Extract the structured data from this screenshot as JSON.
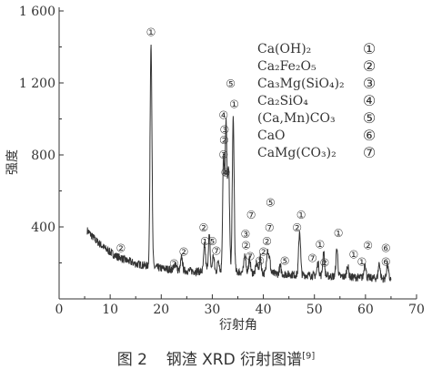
{
  "chart_data": {
    "type": "line",
    "xlabel": "衍射角",
    "ylabel": "强度",
    "xlim": [
      0,
      70
    ],
    "ylim": [
      0,
      1600
    ],
    "xticks": [
      "0",
      "10",
      "20",
      "30",
      "40",
      "50",
      "60",
      "70"
    ],
    "yticks": [
      "400",
      "800",
      "1 200",
      "1 600"
    ],
    "ytick_values": [
      400,
      800,
      1200,
      1600
    ],
    "legend": {
      "position": "top-right",
      "entries": [
        {
          "formula": "Ca(OH)₂",
          "marker": "①"
        },
        {
          "formula": "Ca₂Fe₂O₅",
          "marker": "②"
        },
        {
          "formula": "Ca₃Mg(SiO₄)₂",
          "marker": "③"
        },
        {
          "formula": "Ca₂SiO₄",
          "marker": "④"
        },
        {
          "formula": "(Ca,Mn)CO₃",
          "marker": "⑤"
        },
        {
          "formula": "CaO",
          "marker": "⑥"
        },
        {
          "formula": "CaMg(CO₃)₂",
          "marker": "⑦"
        }
      ]
    },
    "baseline": [
      [
        5.5,
        380
      ],
      [
        7,
        330
      ],
      [
        9,
        280
      ],
      [
        11,
        240
      ],
      [
        13,
        215
      ],
      [
        15,
        195
      ],
      [
        17,
        185
      ],
      [
        20,
        170
      ],
      [
        23,
        160
      ],
      [
        26,
        155
      ],
      [
        29,
        150
      ],
      [
        32,
        150
      ],
      [
        35,
        150
      ],
      [
        38,
        145
      ],
      [
        42,
        140
      ],
      [
        46,
        135
      ],
      [
        50,
        130
      ],
      [
        54,
        125
      ],
      [
        58,
        120
      ],
      [
        62,
        115
      ],
      [
        65,
        110
      ]
    ],
    "peaks": [
      {
        "x": 12.1,
        "y": 230
      },
      {
        "x": 18.0,
        "y": 1435
      },
      {
        "x": 22.8,
        "y": 200
      },
      {
        "x": 24.0,
        "y": 230
      },
      {
        "x": 28.5,
        "y": 300
      },
      {
        "x": 29.4,
        "y": 350
      },
      {
        "x": 30.2,
        "y": 240
      },
      {
        "x": 31.2,
        "y": 220
      },
      {
        "x": 32.2,
        "y": 780
      },
      {
        "x": 32.7,
        "y": 960
      },
      {
        "x": 33.2,
        "y": 720
      },
      {
        "x": 34.1,
        "y": 1000
      },
      {
        "x": 36.4,
        "y": 250
      },
      {
        "x": 37.3,
        "y": 220
      },
      {
        "x": 38.7,
        "y": 200
      },
      {
        "x": 39.4,
        "y": 230
      },
      {
        "x": 40.8,
        "y": 270
      },
      {
        "x": 41.2,
        "y": 220
      },
      {
        "x": 43.3,
        "y": 180
      },
      {
        "x": 47.1,
        "y": 380
      },
      {
        "x": 50.7,
        "y": 200
      },
      {
        "x": 51.8,
        "y": 260
      },
      {
        "x": 54.4,
        "y": 280
      },
      {
        "x": 56.5,
        "y": 190
      },
      {
        "x": 59.9,
        "y": 200
      },
      {
        "x": 62.7,
        "y": 200
      },
      {
        "x": 64.3,
        "y": 190
      }
    ],
    "annotations": [
      {
        "label": "②",
        "x": 12.1,
        "y": 260
      },
      {
        "label": "①",
        "x": 18.0,
        "y": 1460
      },
      {
        "label": "②",
        "x": 22.5,
        "y": 175
      },
      {
        "label": "②",
        "x": 24.4,
        "y": 240
      },
      {
        "label": "②",
        "x": 28.3,
        "y": 375
      },
      {
        "label": "①",
        "x": 28.6,
        "y": 300
      },
      {
        "label": "⑤",
        "x": 30.0,
        "y": 300
      },
      {
        "label": "⑦",
        "x": 30.8,
        "y": 245
      },
      {
        "label": "⑤",
        "x": 33.6,
        "y": 1175
      },
      {
        "label": "④",
        "x": 32.2,
        "y": 1000
      },
      {
        "label": "③",
        "x": 32.4,
        "y": 920
      },
      {
        "label": "②",
        "x": 32.3,
        "y": 860
      },
      {
        "label": "③",
        "x": 32.2,
        "y": 780
      },
      {
        "label": "④",
        "x": 32.6,
        "y": 680
      },
      {
        "label": "①",
        "x": 34.3,
        "y": 1060
      },
      {
        "label": "③",
        "x": 36.5,
        "y": 340
      },
      {
        "label": "⑦",
        "x": 37.6,
        "y": 445
      },
      {
        "label": "②",
        "x": 36.6,
        "y": 275
      },
      {
        "label": "⑦",
        "x": 37.4,
        "y": 215
      },
      {
        "label": "②",
        "x": 39.3,
        "y": 190
      },
      {
        "label": "⑤",
        "x": 41.4,
        "y": 515
      },
      {
        "label": "⑦",
        "x": 41.2,
        "y": 375
      },
      {
        "label": "②",
        "x": 40.7,
        "y": 300
      },
      {
        "label": "②",
        "x": 40.0,
        "y": 240
      },
      {
        "label": "⑤",
        "x": 44.2,
        "y": 190
      },
      {
        "label": "①",
        "x": 47.4,
        "y": 445
      },
      {
        "label": "②",
        "x": 46.6,
        "y": 375
      },
      {
        "label": "⑦",
        "x": 49.6,
        "y": 205
      },
      {
        "label": "①",
        "x": 51.1,
        "y": 280
      },
      {
        "label": "②",
        "x": 52.0,
        "y": 180
      },
      {
        "label": "①",
        "x": 54.7,
        "y": 345
      },
      {
        "label": "①",
        "x": 57.7,
        "y": 225
      },
      {
        "label": "①",
        "x": 59.3,
        "y": 185
      },
      {
        "label": "②",
        "x": 60.5,
        "y": 275
      },
      {
        "label": "⑥",
        "x": 64.0,
        "y": 260
      },
      {
        "label": "⑥",
        "x": 64.0,
        "y": 185
      }
    ]
  },
  "caption": {
    "prefix": "图 2",
    "text": "钢渣 XRD 衍射图谱",
    "ref": "[9]"
  }
}
